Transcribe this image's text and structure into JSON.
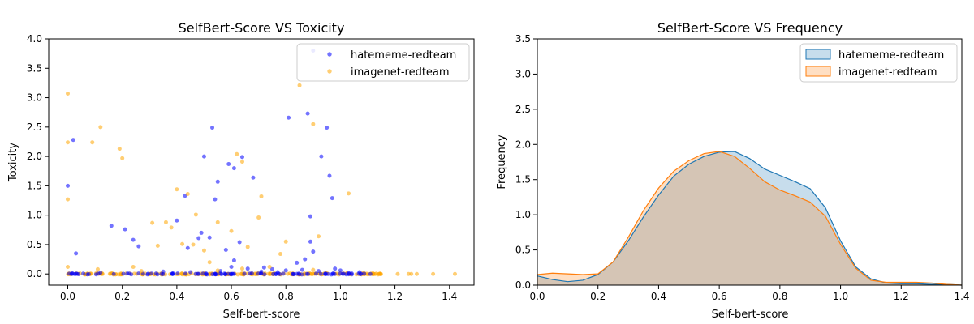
{
  "colors": {
    "hateme": "#0000ff",
    "imagenet": "#ffa500",
    "kde_blue_line": "#1f77b4",
    "kde_blue_fill": "#1f77b4",
    "kde_orange_line": "#ff7f0e",
    "kde_orange_fill": "#ff7f0e"
  },
  "chart_data": [
    {
      "type": "scatter",
      "title": "SelfBert-Score VS Toxicity",
      "xlabel": "Self-bert-score",
      "ylabel": "Toxicity",
      "xlim": [
        -0.07,
        1.49
      ],
      "ylim": [
        -0.19,
        4.0
      ],
      "xticks": [
        "0.0",
        "0.2",
        "0.4",
        "0.6",
        "0.8",
        "1.0",
        "1.2",
        "1.4"
      ],
      "yticks": [
        "0.0",
        "0.5",
        "1.0",
        "1.5",
        "2.0",
        "2.5",
        "3.0",
        "3.5",
        "4.0"
      ],
      "grid": false,
      "legend_position": "top-right",
      "series": [
        {
          "name": "hatememe-redteam",
          "points": [
            [
              0.0,
              1.5
            ],
            [
              0.02,
              2.28
            ],
            [
              0.03,
              0.35
            ],
            [
              0.16,
              0.82
            ],
            [
              0.21,
              0.76
            ],
            [
              0.24,
              0.58
            ],
            [
              0.26,
              0.47
            ],
            [
              0.4,
              0.91
            ],
            [
              0.43,
              1.33
            ],
            [
              0.44,
              0.44
            ],
            [
              0.48,
              0.61
            ],
            [
              0.49,
              0.7
            ],
            [
              0.5,
              2.0
            ],
            [
              0.52,
              0.62
            ],
            [
              0.53,
              2.49
            ],
            [
              0.54,
              1.27
            ],
            [
              0.55,
              1.57
            ],
            [
              0.58,
              0.41
            ],
            [
              0.59,
              1.87
            ],
            [
              0.6,
              0.12
            ],
            [
              0.61,
              1.8
            ],
            [
              0.61,
              0.23
            ],
            [
              0.63,
              0.54
            ],
            [
              0.64,
              1.99
            ],
            [
              0.66,
              0.09
            ],
            [
              0.68,
              1.64
            ],
            [
              0.72,
              0.11
            ],
            [
              0.75,
              0.08
            ],
            [
              0.8,
              0.06
            ],
            [
              0.81,
              2.66
            ],
            [
              0.84,
              0.19
            ],
            [
              0.87,
              0.25
            ],
            [
              0.88,
              2.73
            ],
            [
              0.89,
              0.98
            ],
            [
              0.89,
              0.55
            ],
            [
              0.9,
              0.38
            ],
            [
              0.9,
              3.8
            ],
            [
              0.93,
              2.0
            ],
            [
              0.95,
              2.49
            ],
            [
              0.96,
              1.67
            ],
            [
              0.97,
              1.29
            ],
            [
              0.98,
              0.09
            ],
            [
              1.0,
              0.06
            ],
            [
              0.12,
              0.02
            ],
            [
              0.35,
              0.04
            ],
            [
              0.45,
              0.03
            ],
            [
              0.56,
              0.05
            ],
            [
              0.71,
              0.04
            ],
            [
              0.77,
              0.03
            ],
            [
              0.86,
              0.07
            ],
            [
              0.92,
              0.05
            ],
            [
              1.03,
              0.02
            ],
            [
              1.07,
              0.03
            ],
            [
              1.11,
              0.0
            ]
          ]
        },
        {
          "name": "imagenet-redteam",
          "points": [
            [
              0.0,
              3.07
            ],
            [
              0.0,
              2.24
            ],
            [
              0.0,
              1.27
            ],
            [
              0.0,
              0.12
            ],
            [
              0.09,
              2.24
            ],
            [
              0.12,
              2.5
            ],
            [
              0.19,
              2.13
            ],
            [
              0.2,
              1.97
            ],
            [
              0.24,
              0.12
            ],
            [
              0.31,
              0.87
            ],
            [
              0.33,
              0.48
            ],
            [
              0.36,
              0.88
            ],
            [
              0.38,
              0.79
            ],
            [
              0.4,
              1.44
            ],
            [
              0.42,
              0.51
            ],
            [
              0.44,
              1.36
            ],
            [
              0.46,
              0.5
            ],
            [
              0.47,
              1.01
            ],
            [
              0.5,
              0.4
            ],
            [
              0.52,
              0.2
            ],
            [
              0.55,
              0.88
            ],
            [
              0.6,
              0.73
            ],
            [
              0.62,
              2.04
            ],
            [
              0.64,
              1.91
            ],
            [
              0.66,
              0.46
            ],
            [
              0.7,
              0.96
            ],
            [
              0.71,
              1.32
            ],
            [
              0.74,
              0.12
            ],
            [
              0.78,
              0.34
            ],
            [
              0.8,
              0.55
            ],
            [
              0.85,
              3.21
            ],
            [
              0.9,
              2.55
            ],
            [
              0.92,
              0.64
            ],
            [
              1.03,
              1.37
            ],
            [
              0.11,
              0.08
            ],
            [
              0.27,
              0.05
            ],
            [
              0.55,
              0.06
            ],
            [
              0.64,
              0.09
            ],
            [
              0.9,
              0.07
            ],
            [
              1.21,
              0.0
            ],
            [
              1.25,
              0.0
            ],
            [
              1.26,
              0.0
            ],
            [
              1.28,
              0.0
            ],
            [
              1.34,
              0.0
            ],
            [
              1.42,
              0.0
            ]
          ],
          "dense_band": {
            "x_range": [
              0.0,
              1.15
            ],
            "y": 0.0
          }
        }
      ]
    },
    {
      "type": "area",
      "title": "SelfBert-Score VS Frequency",
      "xlabel": "Self-bert-score",
      "ylabel": "Frequency",
      "xlim": [
        0.0,
        1.4
      ],
      "ylim": [
        0.0,
        3.5
      ],
      "xticks": [
        "0.0",
        "0.2",
        "0.4",
        "0.6",
        "0.8",
        "1.0",
        "1.2",
        "1.4"
      ],
      "yticks": [
        "0.0",
        "0.5",
        "1.0",
        "1.5",
        "2.0",
        "2.5",
        "3.0",
        "3.5"
      ],
      "grid": false,
      "legend_position": "top-right",
      "series": [
        {
          "name": "hatememe-redteam",
          "x": [
            0.0,
            0.05,
            0.1,
            0.15,
            0.2,
            0.25,
            0.3,
            0.35,
            0.4,
            0.45,
            0.5,
            0.55,
            0.6,
            0.65,
            0.7,
            0.75,
            0.8,
            0.85,
            0.9,
            0.95,
            1.0,
            1.05,
            1.1,
            1.15,
            1.2,
            1.25,
            1.3,
            1.35,
            1.4
          ],
          "y": [
            0.13,
            0.08,
            0.05,
            0.07,
            0.15,
            0.33,
            0.63,
            0.97,
            1.28,
            1.55,
            1.72,
            1.83,
            1.89,
            1.9,
            1.8,
            1.65,
            1.56,
            1.47,
            1.37,
            1.1,
            0.63,
            0.26,
            0.09,
            0.03,
            0.02,
            0.02,
            0.01,
            0.01,
            0.0
          ]
        },
        {
          "name": "imagenet-redteam",
          "x": [
            0.0,
            0.05,
            0.1,
            0.15,
            0.2,
            0.25,
            0.3,
            0.35,
            0.4,
            0.45,
            0.5,
            0.55,
            0.6,
            0.65,
            0.7,
            0.75,
            0.8,
            0.85,
            0.9,
            0.95,
            1.0,
            1.05,
            1.1,
            1.15,
            1.2,
            1.25,
            1.3,
            1.35,
            1.4
          ],
          "y": [
            0.15,
            0.17,
            0.16,
            0.15,
            0.16,
            0.33,
            0.68,
            1.06,
            1.38,
            1.62,
            1.77,
            1.87,
            1.9,
            1.83,
            1.66,
            1.47,
            1.35,
            1.27,
            1.18,
            0.98,
            0.58,
            0.24,
            0.07,
            0.04,
            0.04,
            0.04,
            0.03,
            0.01,
            0.0
          ]
        }
      ]
    }
  ]
}
